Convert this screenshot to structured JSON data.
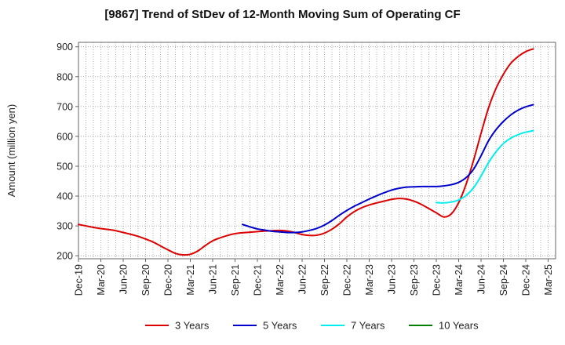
{
  "chart_data": {
    "type": "line",
    "title": "[9867]  Trend of StDev of 12-Month Moving Sum of Operating CF",
    "xlabel": "",
    "ylabel": "Amount (million yen)",
    "ylim": [
      190,
      915
    ],
    "yticks": [
      200,
      300,
      400,
      500,
      600,
      700,
      800,
      900
    ],
    "x_tick_labels": [
      "Dec-19",
      "Mar-20",
      "Jun-20",
      "Sep-20",
      "Dec-20",
      "Mar-21",
      "Jun-21",
      "Sep-21",
      "Dec-21",
      "Mar-22",
      "Jun-22",
      "Sep-22",
      "Dec-22",
      "Mar-23",
      "Jun-23",
      "Sep-23",
      "Dec-23",
      "Mar-24",
      "Jun-24",
      "Sep-24",
      "Dec-24",
      "Mar-25"
    ],
    "x_dates": [
      "2019-12",
      "2020-03",
      "2020-06",
      "2020-09",
      "2020-12",
      "2021-03",
      "2021-06",
      "2021-09",
      "2021-12",
      "2022-03",
      "2022-06",
      "2022-09",
      "2022-12",
      "2023-03",
      "2023-06",
      "2023-09",
      "2023-12",
      "2024-03",
      "2024-06",
      "2024-09",
      "2024-12",
      "2025-03"
    ],
    "grid": true,
    "legend_position": "bottom",
    "series": [
      {
        "name": "3 Years",
        "color": "#dd0000",
        "points": [
          [
            "2019-12",
            305
          ],
          [
            "2020-01",
            300
          ],
          [
            "2020-02",
            295
          ],
          [
            "2020-03",
            291
          ],
          [
            "2020-04",
            288
          ],
          [
            "2020-05",
            284
          ],
          [
            "2020-06",
            278
          ],
          [
            "2020-07",
            272
          ],
          [
            "2020-08",
            265
          ],
          [
            "2020-09",
            256
          ],
          [
            "2020-10",
            246
          ],
          [
            "2020-11",
            233
          ],
          [
            "2020-12",
            220
          ],
          [
            "2021-01",
            208
          ],
          [
            "2021-02",
            203
          ],
          [
            "2021-03",
            205
          ],
          [
            "2021-04",
            216
          ],
          [
            "2021-05",
            234
          ],
          [
            "2021-06",
            250
          ],
          [
            "2021-07",
            260
          ],
          [
            "2021-08",
            268
          ],
          [
            "2021-09",
            274
          ],
          [
            "2021-10",
            277
          ],
          [
            "2021-11",
            279
          ],
          [
            "2021-12",
            281
          ],
          [
            "2022-01",
            283
          ],
          [
            "2022-02",
            284
          ],
          [
            "2022-03",
            285
          ],
          [
            "2022-04",
            283
          ],
          [
            "2022-05",
            278
          ],
          [
            "2022-06",
            271
          ],
          [
            "2022-07",
            268
          ],
          [
            "2022-08",
            269
          ],
          [
            "2022-09",
            276
          ],
          [
            "2022-10",
            289
          ],
          [
            "2022-11",
            307
          ],
          [
            "2022-12",
            330
          ],
          [
            "2023-01",
            348
          ],
          [
            "2023-02",
            361
          ],
          [
            "2023-03",
            370
          ],
          [
            "2023-04",
            377
          ],
          [
            "2023-05",
            383
          ],
          [
            "2023-06",
            389
          ],
          [
            "2023-07",
            392
          ],
          [
            "2023-08",
            390
          ],
          [
            "2023-09",
            383
          ],
          [
            "2023-10",
            372
          ],
          [
            "2023-11",
            358
          ],
          [
            "2023-12",
            344
          ],
          [
            "2024-01",
            330
          ],
          [
            "2024-02",
            340
          ],
          [
            "2024-03",
            378
          ],
          [
            "2024-04",
            440
          ],
          [
            "2024-05",
            520
          ],
          [
            "2024-06",
            610
          ],
          [
            "2024-07",
            695
          ],
          [
            "2024-08",
            760
          ],
          [
            "2024-09",
            808
          ],
          [
            "2024-10",
            845
          ],
          [
            "2024-11",
            868
          ],
          [
            "2024-12",
            884
          ],
          [
            "2025-01",
            893
          ]
        ]
      },
      {
        "name": "5 Years",
        "color": "#0000cc",
        "points": [
          [
            "2021-10",
            305
          ],
          [
            "2021-11",
            297
          ],
          [
            "2021-12",
            290
          ],
          [
            "2022-01",
            286
          ],
          [
            "2022-02",
            282
          ],
          [
            "2022-03",
            280
          ],
          [
            "2022-04",
            278
          ],
          [
            "2022-05",
            278
          ],
          [
            "2022-06",
            280
          ],
          [
            "2022-07",
            285
          ],
          [
            "2022-08",
            292
          ],
          [
            "2022-09",
            303
          ],
          [
            "2022-10",
            318
          ],
          [
            "2022-11",
            336
          ],
          [
            "2022-12",
            352
          ],
          [
            "2023-01",
            366
          ],
          [
            "2023-02",
            378
          ],
          [
            "2023-03",
            390
          ],
          [
            "2023-04",
            401
          ],
          [
            "2023-05",
            411
          ],
          [
            "2023-06",
            420
          ],
          [
            "2023-07",
            426
          ],
          [
            "2023-08",
            430
          ],
          [
            "2023-09",
            431
          ],
          [
            "2023-10",
            432
          ],
          [
            "2023-11",
            432
          ],
          [
            "2023-12",
            432
          ],
          [
            "2024-01",
            434
          ],
          [
            "2024-02",
            438
          ],
          [
            "2024-03",
            446
          ],
          [
            "2024-04",
            462
          ],
          [
            "2024-05",
            490
          ],
          [
            "2024-06",
            535
          ],
          [
            "2024-07",
            585
          ],
          [
            "2024-08",
            622
          ],
          [
            "2024-09",
            650
          ],
          [
            "2024-10",
            672
          ],
          [
            "2024-11",
            688
          ],
          [
            "2024-12",
            699
          ],
          [
            "2025-01",
            706
          ]
        ]
      },
      {
        "name": "7 Years",
        "color": "#00eeee",
        "points": [
          [
            "2023-12",
            378
          ],
          [
            "2024-01",
            377
          ],
          [
            "2024-02",
            380
          ],
          [
            "2024-03",
            387
          ],
          [
            "2024-04",
            402
          ],
          [
            "2024-05",
            428
          ],
          [
            "2024-06",
            467
          ],
          [
            "2024-07",
            512
          ],
          [
            "2024-08",
            548
          ],
          [
            "2024-09",
            576
          ],
          [
            "2024-10",
            594
          ],
          [
            "2024-11",
            606
          ],
          [
            "2024-12",
            614
          ],
          [
            "2025-01",
            619
          ]
        ]
      },
      {
        "name": "10 Years",
        "color": "#008000",
        "points": []
      }
    ]
  }
}
